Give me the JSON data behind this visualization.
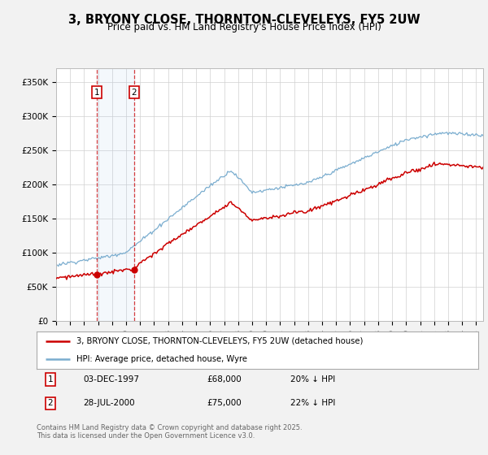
{
  "title": "3, BRYONY CLOSE, THORNTON-CLEVELEYS, FY5 2UW",
  "subtitle": "Price paid vs. HM Land Registry's House Price Index (HPI)",
  "ylim": [
    0,
    370000
  ],
  "yticks": [
    0,
    50000,
    100000,
    150000,
    200000,
    250000,
    300000,
    350000
  ],
  "ytick_labels": [
    "£0",
    "£50K",
    "£100K",
    "£150K",
    "£200K",
    "£250K",
    "£300K",
    "£350K"
  ],
  "background_color": "#f2f2f2",
  "plot_background": "#ffffff",
  "red_line_color": "#cc0000",
  "blue_line_color": "#7aadcf",
  "transaction1_x": 1997.92,
  "transaction1_price": 68000,
  "transaction2_x": 2000.58,
  "transaction2_price": 75000,
  "legend_line1": "3, BRYONY CLOSE, THORNTON-CLEVELEYS, FY5 2UW (detached house)",
  "legend_line2": "HPI: Average price, detached house, Wyre",
  "footnote": "Contains HM Land Registry data © Crown copyright and database right 2025.\nThis data is licensed under the Open Government Licence v3.0.",
  "xmin": 1995.0,
  "xmax": 2025.5
}
